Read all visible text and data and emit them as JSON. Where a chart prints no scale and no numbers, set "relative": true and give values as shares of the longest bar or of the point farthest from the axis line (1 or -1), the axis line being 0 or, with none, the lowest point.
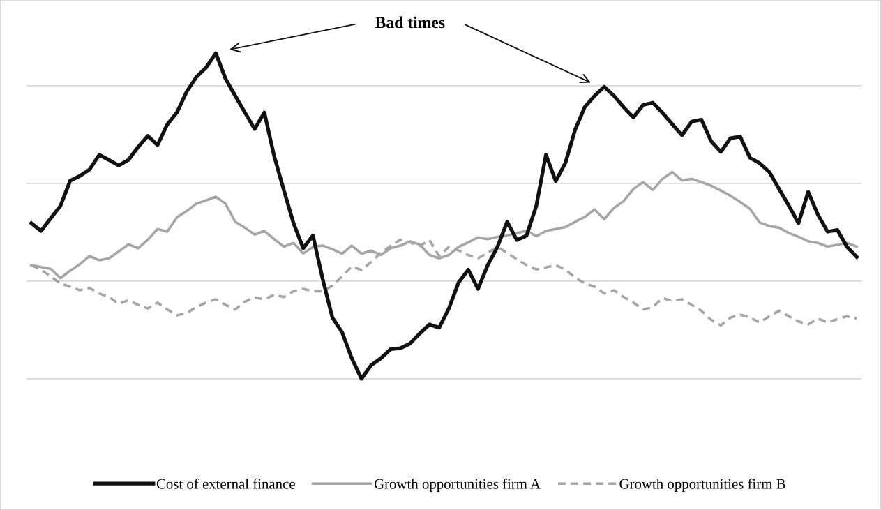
{
  "chart_data": {
    "type": "line",
    "relative": true,
    "grid": "y",
    "legend": "bottom",
    "tick_labels": false,
    "annotations": [
      "Bad times"
    ],
    "categories": [
      null,
      null,
      null,
      null,
      null,
      null,
      null,
      null,
      null,
      null,
      null,
      null,
      null,
      null,
      null,
      null,
      null,
      null,
      null,
      null,
      null,
      null,
      null,
      null,
      null,
      null,
      null,
      null,
      null,
      null,
      null,
      null,
      null,
      null,
      null,
      null,
      null,
      null,
      null,
      null,
      null,
      null,
      null,
      null,
      null,
      null,
      null,
      null,
      null,
      null,
      null,
      null,
      null,
      null,
      null,
      null,
      null,
      null,
      null,
      null,
      null,
      null,
      null,
      null,
      null,
      null,
      null,
      null,
      null,
      null,
      null,
      null,
      null,
      null,
      null,
      null,
      null,
      null,
      null,
      null,
      null,
      null,
      null,
      null,
      null,
      null
    ],
    "series": [
      {
        "name": "Cost of external finance",
        "color": "#111111",
        "line_style": "solid",
        "values": [
          0.478,
          0.454,
          0.493,
          0.531,
          0.608,
          0.623,
          0.643,
          0.688,
          0.672,
          0.655,
          0.672,
          0.712,
          0.746,
          0.718,
          0.781,
          0.818,
          0.882,
          0.927,
          0.956,
          1.0,
          0.922,
          0.869,
          0.818,
          0.767,
          0.818,
          0.685,
          0.58,
          0.478,
          0.401,
          0.44,
          0.307,
          0.188,
          0.143,
          0.063,
          0.0,
          0.042,
          0.063,
          0.091,
          0.094,
          0.108,
          0.139,
          0.167,
          0.157,
          0.216,
          0.296,
          0.335,
          0.276,
          0.349,
          0.405,
          0.482,
          0.426,
          0.44,
          0.531,
          0.688,
          0.607,
          0.663,
          0.765,
          0.835,
          0.869,
          0.897,
          0.869,
          0.834,
          0.803,
          0.841,
          0.848,
          0.817,
          0.782,
          0.748,
          0.79,
          0.796,
          0.73,
          0.697,
          0.739,
          0.744,
          0.679,
          0.662,
          0.635,
          0.583,
          0.532,
          0.478,
          0.574,
          0.504,
          0.452,
          0.457,
          0.405,
          0.374
        ]
      },
      {
        "name": "Growth opportunities firm A",
        "color": "#a6a6a6",
        "line_style": "solid",
        "values": [
          0.349,
          0.343,
          0.338,
          0.309,
          0.332,
          0.352,
          0.377,
          0.364,
          0.37,
          0.391,
          0.413,
          0.401,
          0.427,
          0.46,
          0.452,
          0.496,
          0.515,
          0.538,
          0.548,
          0.559,
          0.538,
          0.482,
          0.464,
          0.443,
          0.454,
          0.429,
          0.406,
          0.417,
          0.385,
          0.405,
          0.409,
          0.398,
          0.384,
          0.409,
          0.384,
          0.394,
          0.38,
          0.401,
          0.409,
          0.422,
          0.412,
          0.38,
          0.37,
          0.38,
          0.405,
          0.419,
          0.434,
          0.429,
          0.436,
          0.44,
          0.447,
          0.455,
          0.438,
          0.454,
          0.46,
          0.466,
          0.482,
          0.497,
          0.52,
          0.49,
          0.525,
          0.546,
          0.583,
          0.604,
          0.58,
          0.614,
          0.635,
          0.609,
          0.614,
          0.604,
          0.593,
          0.578,
          0.562,
          0.543,
          0.522,
          0.48,
          0.469,
          0.464,
          0.448,
          0.436,
          0.422,
          0.417,
          0.406,
          0.412,
          0.417,
          0.406
        ]
      },
      {
        "name": "Growth opportunities firm B",
        "color": "#a6a6a6",
        "line_style": "dashed",
        "values": [
          0.349,
          0.335,
          0.314,
          0.293,
          0.283,
          0.272,
          0.279,
          0.262,
          0.251,
          0.23,
          0.241,
          0.227,
          0.216,
          0.234,
          0.213,
          0.195,
          0.202,
          0.22,
          0.234,
          0.244,
          0.227,
          0.213,
          0.237,
          0.25,
          0.244,
          0.258,
          0.251,
          0.269,
          0.276,
          0.269,
          0.269,
          0.286,
          0.314,
          0.345,
          0.334,
          0.359,
          0.387,
          0.408,
          0.427,
          0.419,
          0.408,
          0.426,
          0.377,
          0.405,
          0.394,
          0.38,
          0.37,
          0.387,
          0.405,
          0.387,
          0.367,
          0.349,
          0.336,
          0.342,
          0.349,
          0.335,
          0.311,
          0.293,
          0.283,
          0.262,
          0.272,
          0.251,
          0.234,
          0.213,
          0.22,
          0.248,
          0.239,
          0.244,
          0.227,
          0.209,
          0.181,
          0.164,
          0.188,
          0.197,
          0.188,
          0.173,
          0.192,
          0.209,
          0.192,
          0.176,
          0.167,
          0.185,
          0.173,
          0.183,
          0.192,
          0.185
        ]
      }
    ]
  }
}
